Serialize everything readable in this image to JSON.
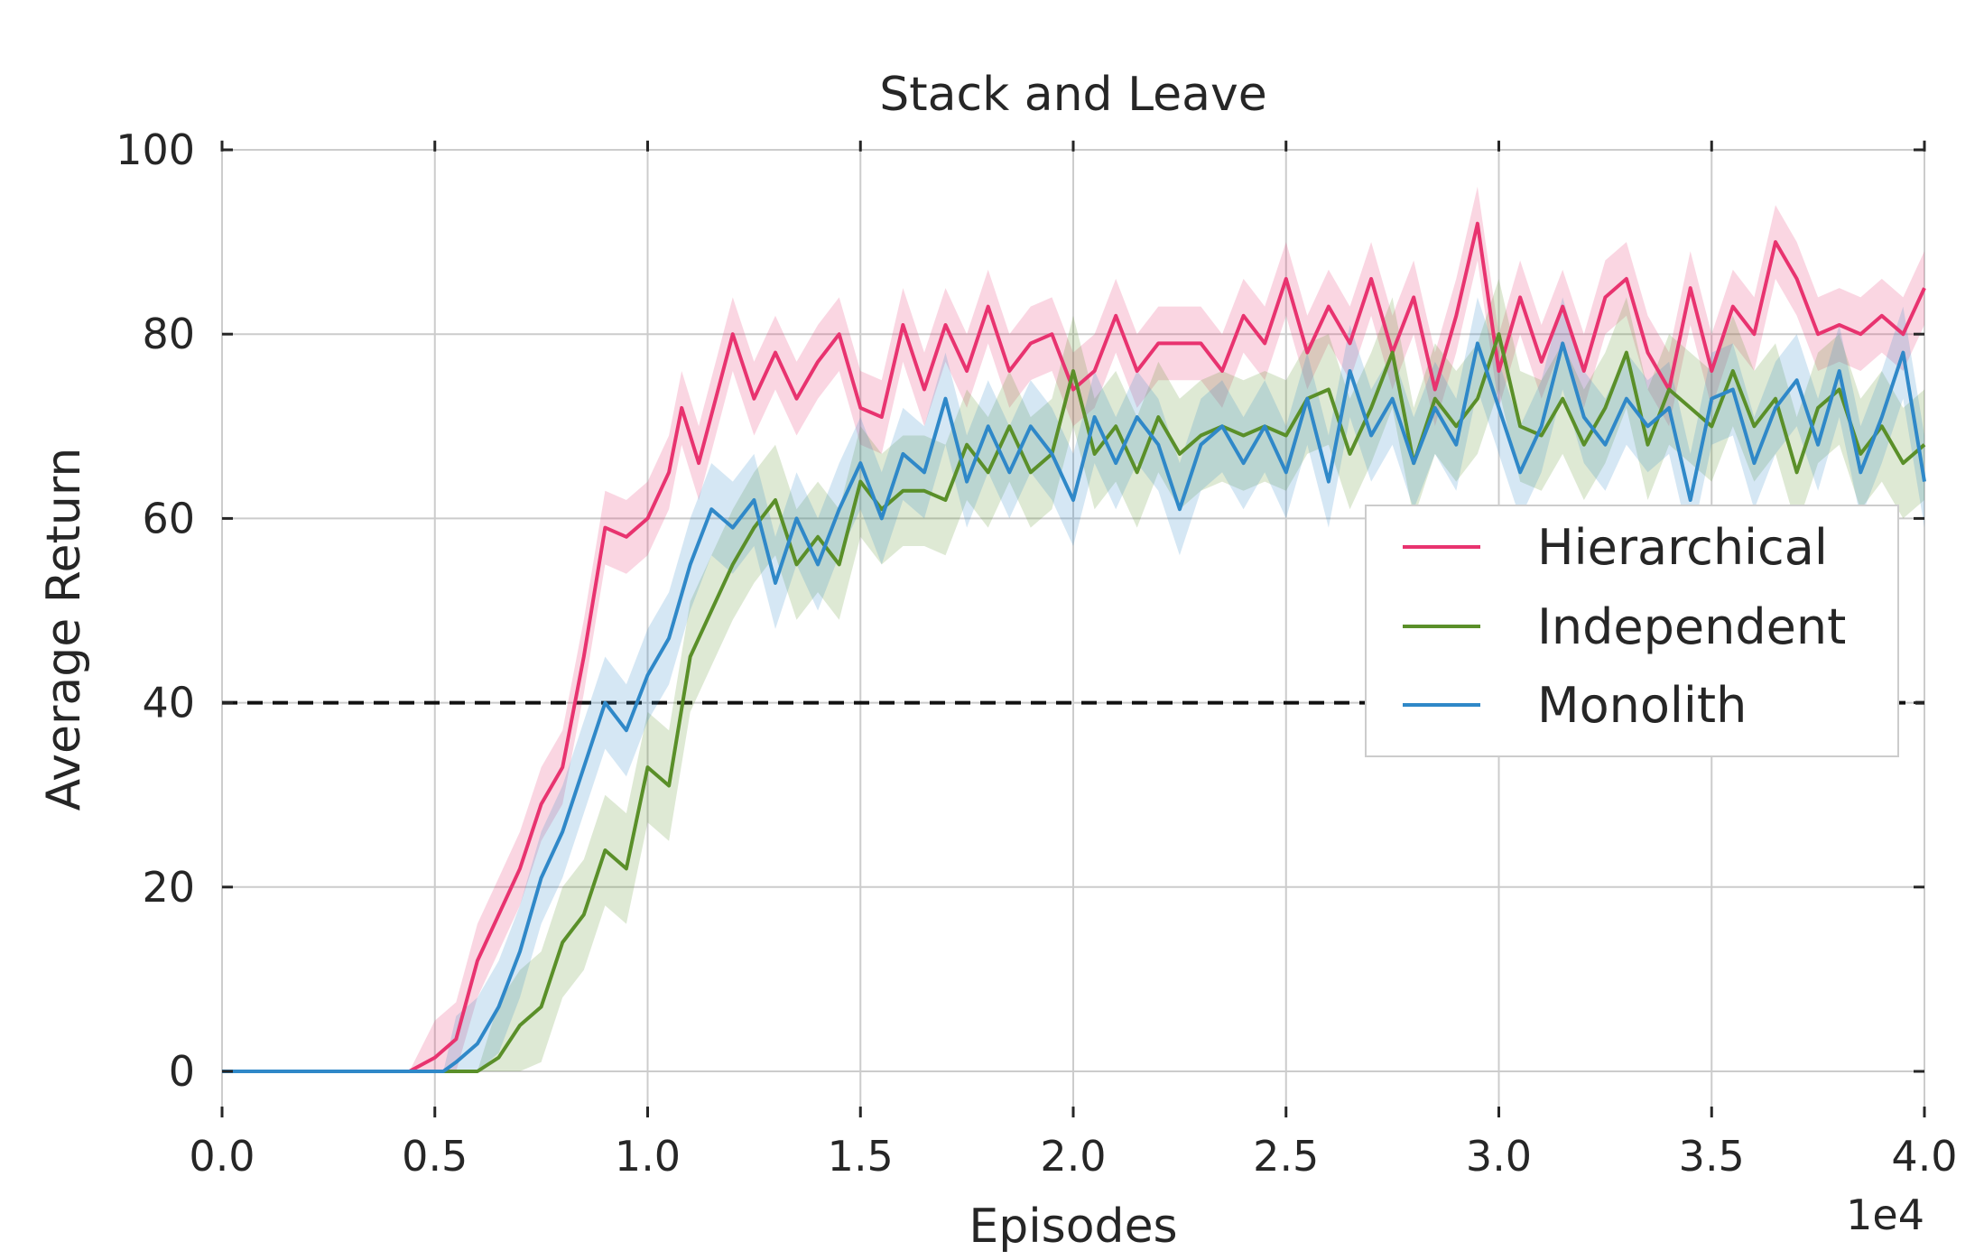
{
  "chart_data": {
    "type": "line",
    "title": "Stack and Leave",
    "xlabel": "Episodes",
    "ylabel": "Average Return",
    "x_offset_label": "1e4",
    "xlim": [
      0.0,
      4.0
    ],
    "ylim": [
      -5,
      101
    ],
    "xticks": [
      "0.0",
      "0.5",
      "1.0",
      "1.5",
      "2.0",
      "2.5",
      "3.0",
      "3.5",
      "4.0"
    ],
    "yticks": [
      "0",
      "20",
      "40",
      "60",
      "80",
      "100"
    ],
    "grid": true,
    "legend_position": "center-right",
    "reference_line": {
      "y": 40,
      "style": "dashed",
      "color": "#111111"
    },
    "series": [
      {
        "name": "Hierarchical",
        "color": "#e8336f",
        "band": 4,
        "points": [
          [
            0.0,
            0
          ],
          [
            0.44,
            0
          ],
          [
            0.5,
            1.5
          ],
          [
            0.55,
            3.5
          ],
          [
            0.6,
            12
          ],
          [
            0.65,
            17
          ],
          [
            0.7,
            22
          ],
          [
            0.75,
            29
          ],
          [
            0.8,
            33
          ],
          [
            0.85,
            45
          ],
          [
            0.9,
            59
          ],
          [
            0.95,
            58
          ],
          [
            1.0,
            60
          ],
          [
            1.05,
            65
          ],
          [
            1.08,
            72
          ],
          [
            1.12,
            66
          ],
          [
            1.2,
            80
          ],
          [
            1.25,
            73
          ],
          [
            1.3,
            78
          ],
          [
            1.35,
            73
          ],
          [
            1.4,
            77
          ],
          [
            1.45,
            80
          ],
          [
            1.5,
            72
          ],
          [
            1.55,
            71
          ],
          [
            1.6,
            81
          ],
          [
            1.65,
            74
          ],
          [
            1.7,
            81
          ],
          [
            1.75,
            76
          ],
          [
            1.8,
            83
          ],
          [
            1.85,
            76
          ],
          [
            1.9,
            79
          ],
          [
            1.95,
            80
          ],
          [
            2.0,
            74
          ],
          [
            2.05,
            76
          ],
          [
            2.1,
            82
          ],
          [
            2.15,
            76
          ],
          [
            2.2,
            79
          ],
          [
            2.3,
            79
          ],
          [
            2.35,
            76
          ],
          [
            2.4,
            82
          ],
          [
            2.45,
            79
          ],
          [
            2.5,
            86
          ],
          [
            2.55,
            78
          ],
          [
            2.6,
            83
          ],
          [
            2.65,
            79
          ],
          [
            2.7,
            86
          ],
          [
            2.75,
            78
          ],
          [
            2.8,
            84
          ],
          [
            2.85,
            74
          ],
          [
            2.9,
            82
          ],
          [
            2.95,
            92
          ],
          [
            3.0,
            76
          ],
          [
            3.05,
            84
          ],
          [
            3.1,
            77
          ],
          [
            3.15,
            83
          ],
          [
            3.2,
            76
          ],
          [
            3.25,
            84
          ],
          [
            3.3,
            86
          ],
          [
            3.35,
            78
          ],
          [
            3.4,
            74
          ],
          [
            3.45,
            85
          ],
          [
            3.5,
            76
          ],
          [
            3.55,
            83
          ],
          [
            3.6,
            80
          ],
          [
            3.65,
            90
          ],
          [
            3.7,
            86
          ],
          [
            3.75,
            80
          ],
          [
            3.8,
            81
          ],
          [
            3.85,
            80
          ],
          [
            3.9,
            82
          ],
          [
            3.95,
            80
          ],
          [
            4.0,
            85
          ]
        ]
      },
      {
        "name": "Independent",
        "color": "#5a8f29",
        "band": 6,
        "points": [
          [
            0.0,
            0
          ],
          [
            0.6,
            0
          ],
          [
            0.65,
            1.5
          ],
          [
            0.7,
            5
          ],
          [
            0.75,
            7
          ],
          [
            0.8,
            14
          ],
          [
            0.85,
            17
          ],
          [
            0.9,
            24
          ],
          [
            0.95,
            22
          ],
          [
            1.0,
            33
          ],
          [
            1.05,
            31
          ],
          [
            1.1,
            45
          ],
          [
            1.15,
            50
          ],
          [
            1.2,
            55
          ],
          [
            1.25,
            59
          ],
          [
            1.3,
            62
          ],
          [
            1.35,
            55
          ],
          [
            1.4,
            58
          ],
          [
            1.45,
            55
          ],
          [
            1.5,
            64
          ],
          [
            1.55,
            61
          ],
          [
            1.6,
            63
          ],
          [
            1.65,
            63
          ],
          [
            1.7,
            62
          ],
          [
            1.75,
            68
          ],
          [
            1.8,
            65
          ],
          [
            1.85,
            70
          ],
          [
            1.9,
            65
          ],
          [
            1.95,
            67
          ],
          [
            2.0,
            76
          ],
          [
            2.05,
            67
          ],
          [
            2.1,
            70
          ],
          [
            2.15,
            65
          ],
          [
            2.2,
            71
          ],
          [
            2.25,
            67
          ],
          [
            2.3,
            69
          ],
          [
            2.35,
            70
          ],
          [
            2.4,
            69
          ],
          [
            2.45,
            70
          ],
          [
            2.5,
            69
          ],
          [
            2.55,
            73
          ],
          [
            2.6,
            74
          ],
          [
            2.65,
            67
          ],
          [
            2.7,
            72
          ],
          [
            2.75,
            78
          ],
          [
            2.8,
            66
          ],
          [
            2.85,
            73
          ],
          [
            2.9,
            70
          ],
          [
            2.95,
            73
          ],
          [
            3.0,
            80
          ],
          [
            3.05,
            70
          ],
          [
            3.1,
            69
          ],
          [
            3.15,
            73
          ],
          [
            3.2,
            68
          ],
          [
            3.25,
            72
          ],
          [
            3.3,
            78
          ],
          [
            3.35,
            68
          ],
          [
            3.4,
            74
          ],
          [
            3.45,
            72
          ],
          [
            3.5,
            70
          ],
          [
            3.55,
            76
          ],
          [
            3.6,
            70
          ],
          [
            3.65,
            73
          ],
          [
            3.7,
            65
          ],
          [
            3.75,
            72
          ],
          [
            3.8,
            74
          ],
          [
            3.85,
            67
          ],
          [
            3.9,
            70
          ],
          [
            3.95,
            66
          ],
          [
            4.0,
            68
          ]
        ]
      },
      {
        "name": "Monolith",
        "color": "#2f88c8",
        "band": 5,
        "points": [
          [
            0.0,
            0
          ],
          [
            0.52,
            0
          ],
          [
            0.55,
            1
          ],
          [
            0.6,
            3
          ],
          [
            0.65,
            7
          ],
          [
            0.7,
            13
          ],
          [
            0.75,
            21
          ],
          [
            0.8,
            26
          ],
          [
            0.85,
            33
          ],
          [
            0.9,
            40
          ],
          [
            0.95,
            37
          ],
          [
            1.0,
            43
          ],
          [
            1.05,
            47
          ],
          [
            1.1,
            55
          ],
          [
            1.15,
            61
          ],
          [
            1.2,
            59
          ],
          [
            1.25,
            62
          ],
          [
            1.3,
            53
          ],
          [
            1.35,
            60
          ],
          [
            1.4,
            55
          ],
          [
            1.45,
            61
          ],
          [
            1.5,
            66
          ],
          [
            1.55,
            60
          ],
          [
            1.6,
            67
          ],
          [
            1.65,
            65
          ],
          [
            1.7,
            73
          ],
          [
            1.75,
            64
          ],
          [
            1.8,
            70
          ],
          [
            1.85,
            65
          ],
          [
            1.9,
            70
          ],
          [
            1.95,
            67
          ],
          [
            2.0,
            62
          ],
          [
            2.05,
            71
          ],
          [
            2.1,
            66
          ],
          [
            2.15,
            71
          ],
          [
            2.2,
            68
          ],
          [
            2.25,
            61
          ],
          [
            2.3,
            68
          ],
          [
            2.35,
            70
          ],
          [
            2.4,
            66
          ],
          [
            2.45,
            70
          ],
          [
            2.5,
            65
          ],
          [
            2.55,
            73
          ],
          [
            2.6,
            64
          ],
          [
            2.65,
            76
          ],
          [
            2.7,
            69
          ],
          [
            2.75,
            73
          ],
          [
            2.8,
            66
          ],
          [
            2.85,
            72
          ],
          [
            2.9,
            68
          ],
          [
            2.95,
            79
          ],
          [
            3.0,
            72
          ],
          [
            3.05,
            65
          ],
          [
            3.1,
            70
          ],
          [
            3.15,
            79
          ],
          [
            3.2,
            71
          ],
          [
            3.25,
            68
          ],
          [
            3.3,
            73
          ],
          [
            3.35,
            70
          ],
          [
            3.4,
            72
          ],
          [
            3.45,
            62
          ],
          [
            3.5,
            73
          ],
          [
            3.55,
            74
          ],
          [
            3.6,
            66
          ],
          [
            3.65,
            72
          ],
          [
            3.7,
            75
          ],
          [
            3.75,
            68
          ],
          [
            3.8,
            76
          ],
          [
            3.85,
            65
          ],
          [
            3.9,
            71
          ],
          [
            3.95,
            78
          ],
          [
            4.0,
            64
          ]
        ]
      }
    ]
  }
}
